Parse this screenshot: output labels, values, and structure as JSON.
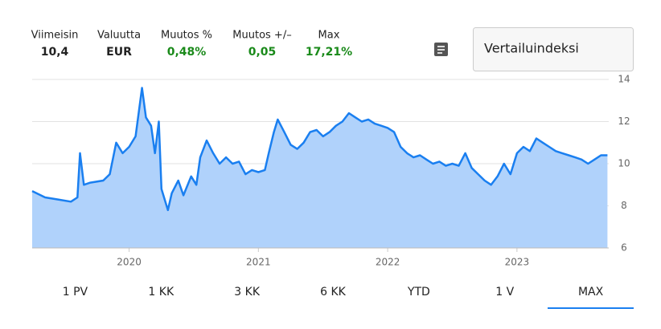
{
  "stats": [
    {
      "label": "Viimeisin",
      "value": "10,4"
    },
    {
      "label": "Valuutta",
      "value": "EUR"
    },
    {
      "label": "Muutos %",
      "value": "0,48%"
    },
    {
      "label": "Muutos +/–",
      "value": "0,05"
    },
    {
      "label": "Max",
      "value": "17,21%"
    }
  ],
  "compare_button": "Vertailuindeksi",
  "tabs": [
    "1 PV",
    "1 KK",
    "3 KK",
    "6 KK",
    "YTD",
    "1 V",
    "MAX"
  ],
  "active_tab": 6,
  "chart_data": {
    "type": "area",
    "color": "#1a7ff0",
    "fill": "#b0d2fb",
    "grid": true,
    "xlim": [
      2019.25,
      2023.71
    ],
    "xticks": [
      2020,
      2021,
      2022,
      2023
    ],
    "ylim": [
      6,
      14
    ],
    "yticks": [
      6,
      8,
      10,
      12,
      14
    ],
    "x": [
      2019.25,
      2019.35,
      2019.45,
      2019.55,
      2019.6,
      2019.62,
      2019.65,
      2019.7,
      2019.8,
      2019.85,
      2019.9,
      2019.95,
      2020.0,
      2020.05,
      2020.1,
      2020.13,
      2020.17,
      2020.2,
      2020.23,
      2020.25,
      2020.3,
      2020.33,
      2020.38,
      2020.42,
      2020.48,
      2020.52,
      2020.55,
      2020.6,
      2020.65,
      2020.7,
      2020.75,
      2020.8,
      2020.85,
      2020.9,
      2020.95,
      2021.0,
      2021.05,
      2021.08,
      2021.12,
      2021.15,
      2021.2,
      2021.25,
      2021.3,
      2021.35,
      2021.4,
      2021.45,
      2021.5,
      2021.55,
      2021.6,
      2021.65,
      2021.7,
      2021.75,
      2021.8,
      2021.85,
      2021.9,
      2021.95,
      2022.0,
      2022.05,
      2022.1,
      2022.15,
      2022.2,
      2022.25,
      2022.3,
      2022.35,
      2022.4,
      2022.45,
      2022.5,
      2022.55,
      2022.6,
      2022.65,
      2022.7,
      2022.75,
      2022.8,
      2022.85,
      2022.9,
      2022.95,
      2023.0,
      2023.05,
      2023.1,
      2023.15,
      2023.2,
      2023.25,
      2023.3,
      2023.35,
      2023.4,
      2023.45,
      2023.5,
      2023.55,
      2023.6,
      2023.65,
      2023.7
    ],
    "values": [
      8.7,
      8.4,
      8.3,
      8.2,
      8.4,
      10.5,
      9.0,
      9.1,
      9.2,
      9.5,
      11.0,
      10.5,
      10.8,
      11.3,
      13.6,
      12.2,
      11.8,
      10.5,
      12.0,
      8.8,
      7.8,
      8.6,
      9.2,
      8.5,
      9.4,
      9.0,
      10.3,
      11.1,
      10.5,
      10.0,
      10.3,
      10.0,
      10.1,
      9.5,
      9.7,
      9.6,
      9.7,
      10.5,
      11.5,
      12.1,
      11.5,
      10.9,
      10.7,
      11.0,
      11.5,
      11.6,
      11.3,
      11.5,
      11.8,
      12.0,
      12.4,
      12.2,
      12.0,
      12.1,
      11.9,
      11.8,
      11.7,
      11.5,
      10.8,
      10.5,
      10.3,
      10.4,
      10.2,
      10.0,
      10.1,
      9.9,
      10.0,
      9.9,
      10.5,
      9.8,
      9.5,
      9.2,
      9.0,
      9.4,
      10.0,
      9.5,
      10.5,
      10.8,
      10.6,
      11.2,
      11.0,
      10.8,
      10.6,
      10.5,
      10.4,
      10.3,
      10.2,
      10.0,
      10.2,
      10.4,
      10.4
    ]
  }
}
